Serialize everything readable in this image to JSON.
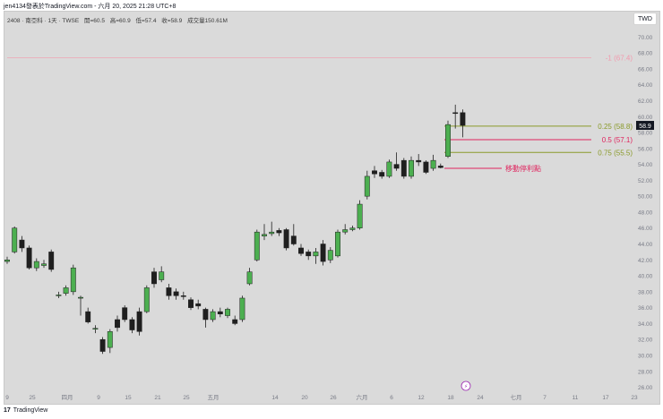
{
  "caption": "jen4134發表於TradingView.com - 六月 20, 2025 21:28 UTC+8",
  "legend": {
    "symbol": "2408 · 南亞科 · 1天 · TWSE",
    "open": "開=60.5",
    "high": "高=60.9",
    "low": "低=57.4",
    "close": "收=58.9",
    "volume": "成交量150.61M"
  },
  "currency": "TWD",
  "footer_logo": "TradingView",
  "footer_mark": "17",
  "last_price": "58.9",
  "colors": {
    "up": "#4caf50",
    "down": "#1f1f1f",
    "background": "#dadada",
    "fib_green": "#8a9a2a",
    "fib_red": "#e0245e",
    "fib_top": "#f29aae",
    "axis_text": "#787b86",
    "price_badge": "#131722"
  },
  "chart_data": {
    "type": "candlestick",
    "ylim": [
      25.5,
      71.5
    ],
    "y_ticks": [
      "26.00",
      "28.00",
      "30.00",
      "32.00",
      "34.00",
      "36.00",
      "38.00",
      "40.00",
      "42.00",
      "44.00",
      "46.00",
      "48.00",
      "50.00",
      "52.00",
      "54.00",
      "56.00",
      "58.00",
      "60.00",
      "62.00",
      "64.00",
      "66.00",
      "68.00",
      "70.00"
    ],
    "x_ticks": [
      "9",
      "25",
      "四月",
      "9",
      "15",
      "21",
      "25",
      "五月",
      "14",
      "20",
      "26",
      "六月",
      "6",
      "12",
      "18",
      "24",
      "七月",
      "7",
      "11",
      "17",
      "23"
    ],
    "candles": [
      {
        "o": 41.8,
        "c": 42.0,
        "h": 42.4,
        "l": 41.5
      },
      {
        "o": 43.0,
        "c": 46.0,
        "h": 46.2,
        "l": 42.8
      },
      {
        "o": 44.5,
        "c": 43.5,
        "h": 45.0,
        "l": 43.0
      },
      {
        "o": 43.5,
        "c": 41.0,
        "h": 43.8,
        "l": 40.8
      },
      {
        "o": 41.0,
        "c": 41.8,
        "h": 42.2,
        "l": 40.6
      },
      {
        "o": 41.3,
        "c": 41.5,
        "h": 42.0,
        "l": 41.0
      },
      {
        "o": 43.0,
        "c": 40.8,
        "h": 43.3,
        "l": 40.5
      },
      {
        "o": 37.5,
        "c": 37.6,
        "h": 38.0,
        "l": 37.2
      },
      {
        "o": 37.8,
        "c": 38.5,
        "h": 38.8,
        "l": 37.5
      },
      {
        "o": 38.0,
        "c": 41.0,
        "h": 41.4,
        "l": 37.6
      },
      {
        "o": 37.2,
        "c": 37.3,
        "h": 37.5,
        "l": 35.0
      },
      {
        "o": 35.5,
        "c": 34.2,
        "h": 36.0,
        "l": 34.0
      },
      {
        "o": 33.3,
        "c": 33.4,
        "h": 33.8,
        "l": 32.8
      },
      {
        "o": 32.0,
        "c": 30.5,
        "h": 32.3,
        "l": 30.2
      },
      {
        "o": 31.0,
        "c": 33.0,
        "h": 33.3,
        "l": 30.3
      },
      {
        "o": 34.5,
        "c": 33.5,
        "h": 35.0,
        "l": 33.0
      },
      {
        "o": 36.0,
        "c": 34.5,
        "h": 36.3,
        "l": 34.2
      },
      {
        "o": 34.5,
        "c": 33.2,
        "h": 34.8,
        "l": 32.8
      },
      {
        "o": 35.5,
        "c": 33.0,
        "h": 36.0,
        "l": 32.5
      },
      {
        "o": 35.5,
        "c": 38.5,
        "h": 38.8,
        "l": 35.3
      },
      {
        "o": 40.5,
        "c": 39.0,
        "h": 41.0,
        "l": 38.5
      },
      {
        "o": 39.5,
        "c": 40.5,
        "h": 41.2,
        "l": 39.2
      },
      {
        "o": 38.5,
        "c": 37.5,
        "h": 39.0,
        "l": 37.0
      },
      {
        "o": 38.0,
        "c": 37.5,
        "h": 38.4,
        "l": 37.0
      },
      {
        "o": 37.5,
        "c": 37.4,
        "h": 38.0,
        "l": 37.0
      },
      {
        "o": 37.0,
        "c": 36.0,
        "h": 37.3,
        "l": 35.7
      },
      {
        "o": 36.5,
        "c": 36.2,
        "h": 37.0,
        "l": 35.8
      },
      {
        "o": 35.8,
        "c": 34.5,
        "h": 36.0,
        "l": 33.5
      },
      {
        "o": 34.5,
        "c": 35.5,
        "h": 35.8,
        "l": 34.2
      },
      {
        "o": 35.5,
        "c": 35.2,
        "h": 36.0,
        "l": 34.8
      },
      {
        "o": 35.0,
        "c": 35.8,
        "h": 36.0,
        "l": 34.7
      },
      {
        "o": 34.5,
        "c": 34.0,
        "h": 35.0,
        "l": 33.8
      },
      {
        "o": 34.5,
        "c": 37.2,
        "h": 37.5,
        "l": 34.2
      },
      {
        "o": 39.0,
        "c": 40.5,
        "h": 41.0,
        "l": 38.8
      },
      {
        "o": 42.0,
        "c": 45.5,
        "h": 45.8,
        "l": 41.8
      },
      {
        "o": 45.0,
        "c": 45.2,
        "h": 46.5,
        "l": 44.5
      },
      {
        "o": 45.3,
        "c": 45.5,
        "h": 46.8,
        "l": 45.0
      },
      {
        "o": 45.7,
        "c": 45.4,
        "h": 46.0,
        "l": 45.0
      },
      {
        "o": 45.8,
        "c": 43.5,
        "h": 46.0,
        "l": 43.2
      },
      {
        "o": 45.0,
        "c": 44.0,
        "h": 46.5,
        "l": 43.8
      },
      {
        "o": 43.5,
        "c": 42.8,
        "h": 44.0,
        "l": 42.5
      },
      {
        "o": 43.0,
        "c": 42.5,
        "h": 43.3,
        "l": 42.0
      },
      {
        "o": 42.5,
        "c": 43.0,
        "h": 43.5,
        "l": 41.5
      },
      {
        "o": 44.0,
        "c": 41.8,
        "h": 44.5,
        "l": 41.3
      },
      {
        "o": 42.0,
        "c": 43.2,
        "h": 43.6,
        "l": 41.6
      },
      {
        "o": 42.5,
        "c": 45.5,
        "h": 45.8,
        "l": 42.3
      },
      {
        "o": 45.5,
        "c": 45.8,
        "h": 46.5,
        "l": 45.2
      },
      {
        "o": 45.8,
        "c": 46.0,
        "h": 46.3,
        "l": 45.6
      },
      {
        "o": 46.0,
        "c": 49.0,
        "h": 49.5,
        "l": 45.8
      },
      {
        "o": 50.0,
        "c": 52.5,
        "h": 53.2,
        "l": 49.6
      },
      {
        "o": 53.2,
        "c": 52.8,
        "h": 53.8,
        "l": 52.3
      },
      {
        "o": 53.0,
        "c": 52.5,
        "h": 53.3,
        "l": 52.2
      },
      {
        "o": 52.5,
        "c": 54.3,
        "h": 54.6,
        "l": 52.3
      },
      {
        "o": 54.0,
        "c": 53.5,
        "h": 55.5,
        "l": 53.2
      },
      {
        "o": 54.5,
        "c": 52.5,
        "h": 54.8,
        "l": 52.2
      },
      {
        "o": 52.5,
        "c": 54.5,
        "h": 55.0,
        "l": 52.2
      },
      {
        "o": 54.5,
        "c": 54.3,
        "h": 55.3,
        "l": 53.8
      },
      {
        "o": 54.3,
        "c": 53.0,
        "h": 54.5,
        "l": 52.8
      },
      {
        "o": 53.5,
        "c": 54.5,
        "h": 55.2,
        "l": 53.2
      },
      {
        "o": 53.8,
        "c": 53.6,
        "h": 54.1,
        "l": 53.5
      },
      {
        "o": 55.0,
        "c": 59.0,
        "h": 59.5,
        "l": 54.8
      },
      {
        "o": 60.5,
        "c": 60.4,
        "h": 61.5,
        "l": 58.5
      },
      {
        "o": 60.5,
        "c": 58.9,
        "h": 60.9,
        "l": 57.4
      }
    ],
    "fib_levels": [
      {
        "label": "-1 (67.4)",
        "value": 67.4,
        "color": "#f29aae"
      },
      {
        "label": "0.25 (58.8)",
        "value": 58.8,
        "color": "#8a9a2a"
      },
      {
        "label": "0.5 (57.1)",
        "value": 57.1,
        "color": "#e0245e"
      },
      {
        "label": "0.75 (55.5)",
        "value": 55.5,
        "color": "#8a9a2a"
      }
    ],
    "annotation": {
      "text": "移動停利點",
      "value": 53.5
    },
    "event_marker": "⚡"
  }
}
